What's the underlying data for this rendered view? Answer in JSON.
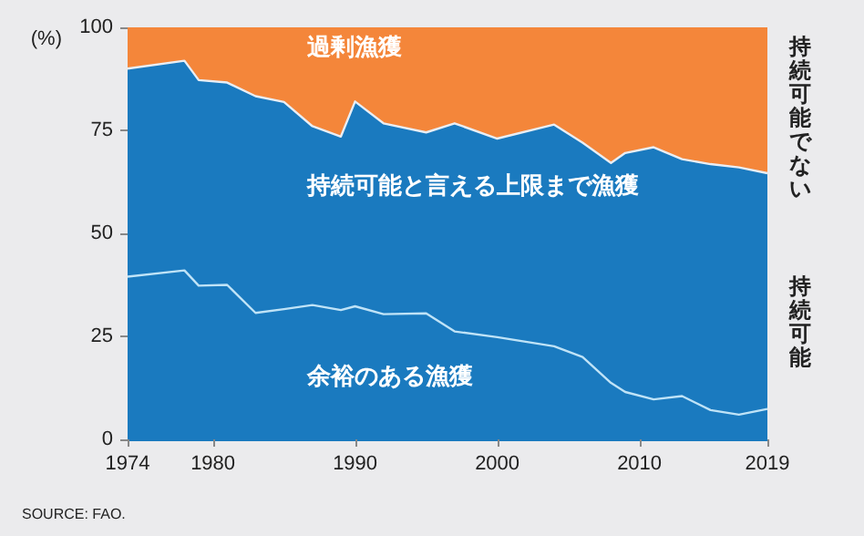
{
  "chart_data": {
    "type": "area",
    "stacked": true,
    "ylabel": "(%)",
    "legend": false,
    "grid": false,
    "x": [
      1974,
      1978,
      1979,
      1981,
      1983,
      1985,
      1987,
      1989,
      1990,
      1992,
      1995,
      1997,
      2000,
      2004,
      2006,
      2008,
      2009,
      2011,
      2013,
      2015,
      2017,
      2019
    ],
    "series": [
      {
        "name": "余裕のある漁獲",
        "color": "#1a7abf",
        "values": [
          39.5,
          41,
          37.3,
          37.5,
          30.7,
          31.6,
          32.6,
          31.4,
          32.3,
          30.4,
          30.6,
          26.2,
          24.8,
          22.6,
          20,
          13.7,
          11.5,
          9.7,
          10.5,
          7.1,
          6,
          7.4
        ]
      },
      {
        "name": "持続可能と言える上限まで漁獲",
        "color": "#1a7abf",
        "values": [
          50.5,
          50.9,
          49.9,
          49.1,
          52.6,
          50.3,
          43.4,
          42.1,
          49.7,
          46.3,
          43.9,
          50.5,
          48.2,
          53.8,
          52,
          53.4,
          58,
          61.2,
          57.5,
          59.7,
          60,
          57.2
        ]
      },
      {
        "name": "過剰漁獲",
        "color": "#f4863a",
        "values": [
          10,
          8.1,
          12.8,
          13.4,
          16.7,
          18.1,
          24,
          26.5,
          18,
          23.3,
          25.5,
          23.3,
          27,
          23.6,
          28,
          32.9,
          30.5,
          29.1,
          32,
          33.2,
          34,
          35.4
        ]
      }
    ],
    "xlim": [
      1974,
      2019
    ],
    "xticks": [
      1974,
      1980,
      1990,
      2000,
      2010,
      2019
    ],
    "ylim": [
      0,
      100
    ],
    "yticks": [
      0,
      25,
      50,
      75,
      100
    ],
    "annotations": [
      "持続可能でない",
      "持続可能",
      "SOURCE: FAO."
    ]
  }
}
